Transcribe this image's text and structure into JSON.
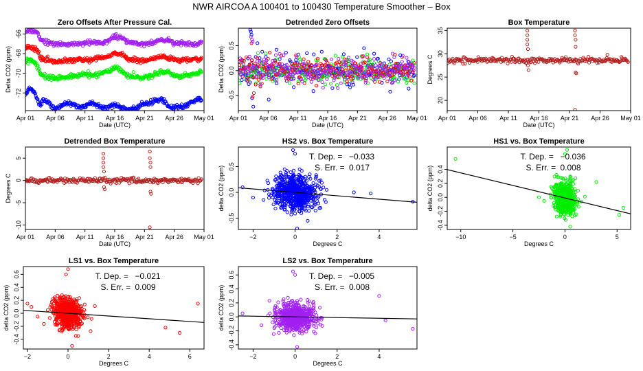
{
  "figure": {
    "title": "NWR   AIRCOA A   100401 to 100430   Temperature Smoother – Box"
  },
  "colors": {
    "HS2": "#0000ff",
    "HS1": "#00ee00",
    "LS1": "#ff0000",
    "LS2": "#a020f0",
    "box": "#b22222",
    "fit": "#000000"
  },
  "chart_data": [
    {
      "id": "p1",
      "type": "scatter",
      "title": "Zero Offsets After Pressure Cal.",
      "xlabel": "Date (UTC)",
      "ylabel": "Delta CO2 (ppm)",
      "xlim": [
        1,
        31
      ],
      "ylim": [
        -73.8,
        -65.4
      ],
      "xticks": [
        {
          "v": 1,
          "l": "Apr 01"
        },
        {
          "v": 6,
          "l": "Apr 06"
        },
        {
          "v": 11,
          "l": "Apr 11"
        },
        {
          "v": 16,
          "l": "Apr 16"
        },
        {
          "v": 21,
          "l": "Apr 21"
        },
        {
          "v": 26,
          "l": "Apr 26"
        },
        {
          "v": 31,
          "l": "May 01"
        }
      ],
      "yticks": [
        {
          "v": -72,
          "l": "-72"
        },
        {
          "v": -70,
          "l": "-70"
        },
        {
          "v": -68,
          "l": "-68"
        },
        {
          "v": -66,
          "l": "-66"
        }
      ],
      "series": [
        {
          "name": "LS2",
          "color_key": "LS2",
          "x": [
            1,
            1.5,
            2,
            2.5,
            3,
            3.5,
            4,
            5,
            6,
            7,
            8,
            9,
            10,
            11,
            12,
            13,
            14,
            15,
            16,
            17,
            18,
            19,
            20,
            21,
            22,
            23,
            24,
            25,
            26,
            27,
            28,
            29,
            30,
            30.5
          ],
          "y": [
            -65.8,
            -65.6,
            -65.6,
            -65.7,
            -65.8,
            -66.6,
            -66.6,
            -66.9,
            -67.0,
            -67.1,
            -67.1,
            -67.0,
            -67.0,
            -66.9,
            -66.9,
            -66.8,
            -66.9,
            -66.6,
            -66.2,
            -66.3,
            -66.8,
            -66.9,
            -67.0,
            -67.0,
            -67.0,
            -66.7,
            -66.6,
            -66.6,
            -66.9,
            -66.9,
            -67.0,
            -67.0,
            -67.0,
            -66.9
          ]
        },
        {
          "name": "LS1",
          "color_key": "LS1",
          "x": [
            1,
            1.5,
            2,
            2.5,
            3,
            3.5,
            4,
            5,
            6,
            7,
            8,
            9,
            10,
            11,
            12,
            13,
            14,
            15,
            16,
            17,
            18,
            19,
            20,
            21,
            22,
            23,
            24,
            25,
            26,
            27,
            28,
            29,
            30,
            30.5
          ],
          "y": [
            -67.5,
            -67.4,
            -67.4,
            -67.5,
            -67.6,
            -68.5,
            -68.6,
            -68.7,
            -68.8,
            -68.8,
            -68.7,
            -68.7,
            -68.6,
            -68.6,
            -68.7,
            -68.5,
            -68.4,
            -68.3,
            -67.9,
            -68.0,
            -68.5,
            -68.6,
            -68.7,
            -68.7,
            -68.6,
            -68.4,
            -68.3,
            -68.4,
            -68.6,
            -68.7,
            -68.6,
            -68.6,
            -68.6,
            -68.5
          ]
        },
        {
          "name": "HS1",
          "color_key": "HS1",
          "x": [
            1,
            1.5,
            2,
            2.5,
            3,
            3.5,
            4,
            5,
            6,
            7,
            8,
            9,
            10,
            11,
            12,
            13,
            14,
            15,
            16,
            17,
            18,
            19,
            20,
            21,
            22,
            23,
            24,
            25,
            26,
            27,
            28,
            29,
            30,
            30.5
          ],
          "y": [
            -68.9,
            -68.6,
            -68.6,
            -68.9,
            -69.2,
            -70.1,
            -70.2,
            -70.4,
            -70.5,
            -70.4,
            -70.4,
            -70.3,
            -70.2,
            -70.1,
            -70.2,
            -70.1,
            -69.9,
            -69.8,
            -69.4,
            -69.6,
            -70.2,
            -70.3,
            -70.4,
            -70.4,
            -70.3,
            -70.0,
            -69.8,
            -69.9,
            -70.2,
            -70.3,
            -70.2,
            -70.1,
            -70.0,
            -69.8
          ]
        },
        {
          "name": "HS2",
          "color_key": "HS2",
          "x": [
            1,
            1.5,
            2,
            2.5,
            3,
            3.5,
            4,
            5,
            6,
            7,
            8,
            9,
            10,
            11,
            12,
            13,
            14,
            15,
            16,
            17,
            18,
            19,
            20,
            21,
            22,
            23,
            24,
            25,
            26,
            27,
            28,
            29,
            30,
            30.5
          ],
          "y": [
            -72.2,
            -71.7,
            -71.6,
            -71.9,
            -72.6,
            -73.2,
            -72.6,
            -73.1,
            -73.7,
            -73.3,
            -73.0,
            -73.2,
            -73.5,
            -73.3,
            -73.0,
            -73.2,
            -73.5,
            -73.4,
            -73.2,
            -73.4,
            -73.7,
            -73.6,
            -73.4,
            -73.1,
            -73.0,
            -72.8,
            -72.6,
            -73.3,
            -73.5,
            -73.4,
            -73.3,
            -72.9,
            -72.6,
            -72.7
          ]
        }
      ]
    },
    {
      "id": "p2",
      "type": "scatter",
      "title": "Detrended Zero Offsets",
      "xlabel": "Date (UTC)",
      "ylabel": "Delta CO2 (ppm)",
      "xlim": [
        1,
        31
      ],
      "ylim": [
        -0.8,
        0.85
      ],
      "xticks": [
        {
          "v": 1,
          "l": "Apr 01"
        },
        {
          "v": 6,
          "l": "Apr 06"
        },
        {
          "v": 11,
          "l": "Apr 11"
        },
        {
          "v": 16,
          "l": "Apr 16"
        },
        {
          "v": 21,
          "l": "Apr 21"
        },
        {
          "v": 26,
          "l": "Apr 26"
        },
        {
          "v": 31,
          "l": "May 01"
        }
      ],
      "yticks": [
        {
          "v": -0.5,
          "l": "-0.5"
        },
        {
          "v": 0.0,
          "l": "0.0"
        },
        {
          "v": 0.5,
          "l": "0.5"
        }
      ],
      "spread": 0.12,
      "series": [
        {
          "name": "HS2",
          "color_key": "HS2",
          "x": [
            3.0,
            3.1,
            3.2,
            3.3,
            3.5,
            4.2,
            5.0,
            6.1,
            7.4,
            9.0,
            10.3,
            12.5,
            13.6,
            15.0,
            16.8,
            18.7,
            20.3,
            22.1,
            23.8,
            26.5,
            28.2,
            29.6
          ],
          "y": [
            0.82,
            0.78,
            0.72,
            -0.55,
            -0.72,
            0.55,
            0.38,
            -0.58,
            0.42,
            0.36,
            -0.33,
            0.35,
            -0.41,
            0.38,
            -0.35,
            0.33,
            -0.28,
            0.45,
            0.34,
            -0.42,
            0.31,
            -0.36
          ]
        },
        {
          "name": "LS1",
          "color_key": "LS1",
          "x": [
            3.2,
            3.4,
            3.6,
            8.2,
            14.1,
            21.8,
            27.3
          ],
          "y": [
            0.55,
            -0.52,
            -0.45,
            0.3,
            -0.3,
            0.28,
            0.32
          ]
        },
        {
          "name": "HS1",
          "color_key": "HS1",
          "x": [
            4.3,
            9.6,
            17.3,
            23.1
          ],
          "y": [
            0.35,
            -0.25,
            0.3,
            0.22
          ]
        },
        {
          "name": "LS2",
          "color_key": "LS2",
          "x": [
            3.1,
            3.3,
            3.4
          ],
          "y": [
            0.68,
            0.62,
            0.58
          ]
        }
      ]
    },
    {
      "id": "p3",
      "type": "scatter",
      "title": "Box Temperature",
      "xlabel": "Date (UTC)",
      "ylabel": "Degrees C",
      "xlim": [
        1,
        31
      ],
      "ylim": [
        17.8,
        35.5
      ],
      "xticks": [
        {
          "v": 1,
          "l": "Apr 01"
        },
        {
          "v": 6,
          "l": "Apr 06"
        },
        {
          "v": 11,
          "l": "Apr 11"
        },
        {
          "v": 16,
          "l": "Apr 16"
        },
        {
          "v": 21,
          "l": "Apr 21"
        },
        {
          "v": 26,
          "l": "Apr 26"
        },
        {
          "v": 31,
          "l": "May 01"
        }
      ],
      "yticks": [
        {
          "v": 20,
          "l": "20"
        },
        {
          "v": 25,
          "l": "25"
        },
        {
          "v": 30,
          "l": "30"
        },
        {
          "v": 35,
          "l": "35"
        }
      ],
      "baseline": 28.6,
      "series": [
        {
          "name": "Box",
          "color_key": "box",
          "x": [
            14.1,
            14.1,
            14.1,
            14.1,
            14.2,
            14.2,
            14.3,
            21.9,
            21.9,
            22.0,
            22.0,
            22.0,
            22.1,
            21.9,
            27.2
          ],
          "y": [
            35.0,
            34.0,
            33.0,
            32.0,
            31.0,
            27.5,
            26.5,
            35.0,
            34.0,
            33.0,
            31.5,
            26.0,
            25.8,
            18.0,
            29.8
          ]
        }
      ]
    },
    {
      "id": "p4",
      "type": "scatter",
      "title": "Detrended Box Temperature",
      "xlabel": "Date (UTC)",
      "ylabel": "Degrees C",
      "xlim": [
        1,
        31
      ],
      "ylim": [
        -11,
        7.5
      ],
      "xticks": [
        {
          "v": 1,
          "l": "Apr 01"
        },
        {
          "v": 6,
          "l": "Apr 06"
        },
        {
          "v": 11,
          "l": "Apr 11"
        },
        {
          "v": 16,
          "l": "Apr 16"
        },
        {
          "v": 21,
          "l": "Apr 21"
        },
        {
          "v": 26,
          "l": "Apr 26"
        },
        {
          "v": 31,
          "l": "May 01"
        }
      ],
      "yticks": [
        {
          "v": -10,
          "l": "-10"
        },
        {
          "v": -5,
          "l": "-5"
        },
        {
          "v": 0,
          "l": "0"
        },
        {
          "v": 5,
          "l": "5"
        }
      ],
      "baseline": 0.0,
      "series": [
        {
          "name": "Box",
          "color_key": "box",
          "x": [
            14.1,
            14.1,
            14.1,
            14.1,
            14.2,
            14.2,
            14.3,
            21.9,
            21.9,
            22.0,
            22.0,
            22.0,
            22.1,
            21.9
          ],
          "y": [
            6.0,
            5.0,
            4.0,
            3.0,
            2.0,
            -1.5,
            -2.0,
            6.5,
            5.0,
            4.0,
            3.0,
            -2.5,
            -3.0,
            -10.5
          ]
        }
      ]
    },
    {
      "id": "p5",
      "type": "scatter",
      "title": "HS2 vs. Box Temperature",
      "xlabel": "Degrees C",
      "ylabel": "delta CO2 (ppm)",
      "xlim": [
        -2.7,
        5.8
      ],
      "ylim": [
        -0.72,
        0.88
      ],
      "xticks": [
        {
          "v": -2,
          "l": "−2"
        },
        {
          "v": 0,
          "l": "0"
        },
        {
          "v": 2,
          "l": "2"
        },
        {
          "v": 4,
          "l": "4"
        }
      ],
      "yticks": [
        {
          "v": -0.5,
          "l": "-0.5"
        },
        {
          "v": 0.0,
          "l": "0.0"
        },
        {
          "v": 0.5,
          "l": "0.5"
        }
      ],
      "fit": {
        "slope": -0.033,
        "intercept": 0.0
      },
      "annotation": {
        "dep_label": "T. Dep. =",
        "dep": "−0.033",
        "err_label": "S. Err. =",
        "err": "0.017"
      },
      "color_key": "HS2",
      "cluster_sx": 0.5,
      "cluster_sy": 0.17,
      "series": [
        {
          "name": "HS2",
          "x": [
            -2.5,
            -2.0,
            -1.3,
            -0.8,
            0.2,
            1.5,
            1.2,
            2.8,
            3.6,
            5.6,
            -0.1,
            0.1,
            0.0,
            -0.5,
            0.6,
            1.0
          ],
          "y": [
            0.1,
            -0.1,
            0.05,
            -0.2,
            -0.15,
            0.05,
            -0.3,
            0.0,
            -0.02,
            -0.18,
            0.82,
            -0.7,
            0.75,
            0.45,
            -0.55,
            0.3
          ]
        }
      ]
    },
    {
      "id": "p6",
      "type": "scatter",
      "title": "HS1 vs. Box Temperature",
      "xlabel": "Degrees C",
      "ylabel": "delta CO2 (ppm)",
      "xlim": [
        -11.3,
        6.3
      ],
      "ylim": [
        -0.46,
        0.72
      ],
      "xticks": [
        {
          "v": -10,
          "l": "−10"
        },
        {
          "v": -5,
          "l": "−5"
        },
        {
          "v": 0,
          "l": "0"
        },
        {
          "v": 5,
          "l": "5"
        }
      ],
      "yticks": [
        {
          "v": -0.4,
          "l": "-0.4"
        },
        {
          "v": -0.2,
          "l": "-0.2"
        },
        {
          "v": 0.0,
          "l": "0.0"
        },
        {
          "v": 0.2,
          "l": "0.2"
        },
        {
          "v": 0.4,
          "l": "0.4"
        }
      ],
      "fit": {
        "slope": -0.036,
        "intercept": -0.01
      },
      "annotation": {
        "dep_label": "T. Dep. =",
        "dep": "−0.036",
        "err_label": "S. Err. =",
        "err": "0.008"
      },
      "color_key": "HS1",
      "cluster_sx": 0.5,
      "cluster_sy": 0.11,
      "series": [
        {
          "name": "HS1",
          "x": [
            -10.5,
            -2.5,
            -2.0,
            3.0,
            5.2,
            5.6,
            -0.8,
            0.2,
            0.0,
            0.5
          ],
          "y": [
            0.55,
            0.0,
            -0.05,
            0.22,
            -0.25,
            -0.15,
            -0.08,
            0.68,
            0.62,
            -0.42
          ]
        }
      ]
    },
    {
      "id": "p7",
      "type": "scatter",
      "title": "LS1 vs. Box Temperature",
      "xlabel": "Degrees C",
      "ylabel": "delta CO2 (ppm)",
      "xlim": [
        -2.2,
        6.7
      ],
      "ylim": [
        -0.55,
        0.72
      ],
      "xticks": [
        {
          "v": -2,
          "l": "−2"
        },
        {
          "v": 0,
          "l": "0"
        },
        {
          "v": 2,
          "l": "2"
        },
        {
          "v": 4,
          "l": "4"
        },
        {
          "v": 6,
          "l": "6"
        }
      ],
      "yticks": [
        {
          "v": -0.4,
          "l": "-0.4"
        },
        {
          "v": -0.2,
          "l": "-0.2"
        },
        {
          "v": 0.0,
          "l": "0.0"
        },
        {
          "v": 0.2,
          "l": "0.2"
        },
        {
          "v": 0.4,
          "l": "0.4"
        },
        {
          "v": 0.6,
          "l": "0.6"
        }
      ],
      "fit": {
        "slope": -0.021,
        "intercept": 0.0
      },
      "annotation": {
        "dep_label": "T. Dep. =",
        "dep": "−0.021",
        "err_label": "S. Err. =",
        "err": "0.009"
      },
      "color_key": "LS1",
      "cluster_sx": 0.35,
      "cluster_sy": 0.11,
      "series": [
        {
          "name": "LS1",
          "x": [
            -2.0,
            -1.8,
            -1.5,
            -1.0,
            4.8,
            5.5,
            6.4,
            0.0,
            -0.1,
            0.2,
            0.5
          ],
          "y": [
            0.15,
            0.1,
            -0.05,
            0.05,
            -0.22,
            -0.3,
            0.15,
            0.68,
            0.6,
            -0.5,
            -0.35
          ]
        }
      ]
    },
    {
      "id": "p8",
      "type": "scatter",
      "title": "LS2 vs. Box Temperature",
      "xlabel": "Degrees C",
      "ylabel": "delta CO2 (ppm)",
      "xlim": [
        -2.7,
        5.8
      ],
      "ylim": [
        -0.46,
        0.72
      ],
      "xticks": [
        {
          "v": -2,
          "l": "−2"
        },
        {
          "v": 0,
          "l": "0"
        },
        {
          "v": 2,
          "l": "2"
        },
        {
          "v": 4,
          "l": "4"
        }
      ],
      "yticks": [
        {
          "v": -0.4,
          "l": "-0.4"
        },
        {
          "v": -0.2,
          "l": "-0.2"
        },
        {
          "v": 0.0,
          "l": "0.0"
        },
        {
          "v": 0.2,
          "l": "0.2"
        },
        {
          "v": 0.4,
          "l": "0.4"
        },
        {
          "v": 0.6,
          "l": "0.6"
        }
      ],
      "fit": {
        "slope": -0.005,
        "intercept": 0.0
      },
      "annotation": {
        "dep_label": "T. Dep. =",
        "dep": "−0.005",
        "err_label": "S. Err. =",
        "err": "0.008"
      },
      "color_key": "LS2",
      "cluster_sx": 0.45,
      "cluster_sy": 0.09,
      "series": [
        {
          "name": "LS2",
          "x": [
            -2.5,
            -1.6,
            -1.2,
            4.0,
            4.3,
            5.6,
            -0.1,
            0.0,
            0.1
          ],
          "y": [
            0.05,
            -0.12,
            0.05,
            0.3,
            -0.05,
            -0.17,
            0.65,
            0.6,
            -0.43
          ]
        }
      ]
    }
  ]
}
